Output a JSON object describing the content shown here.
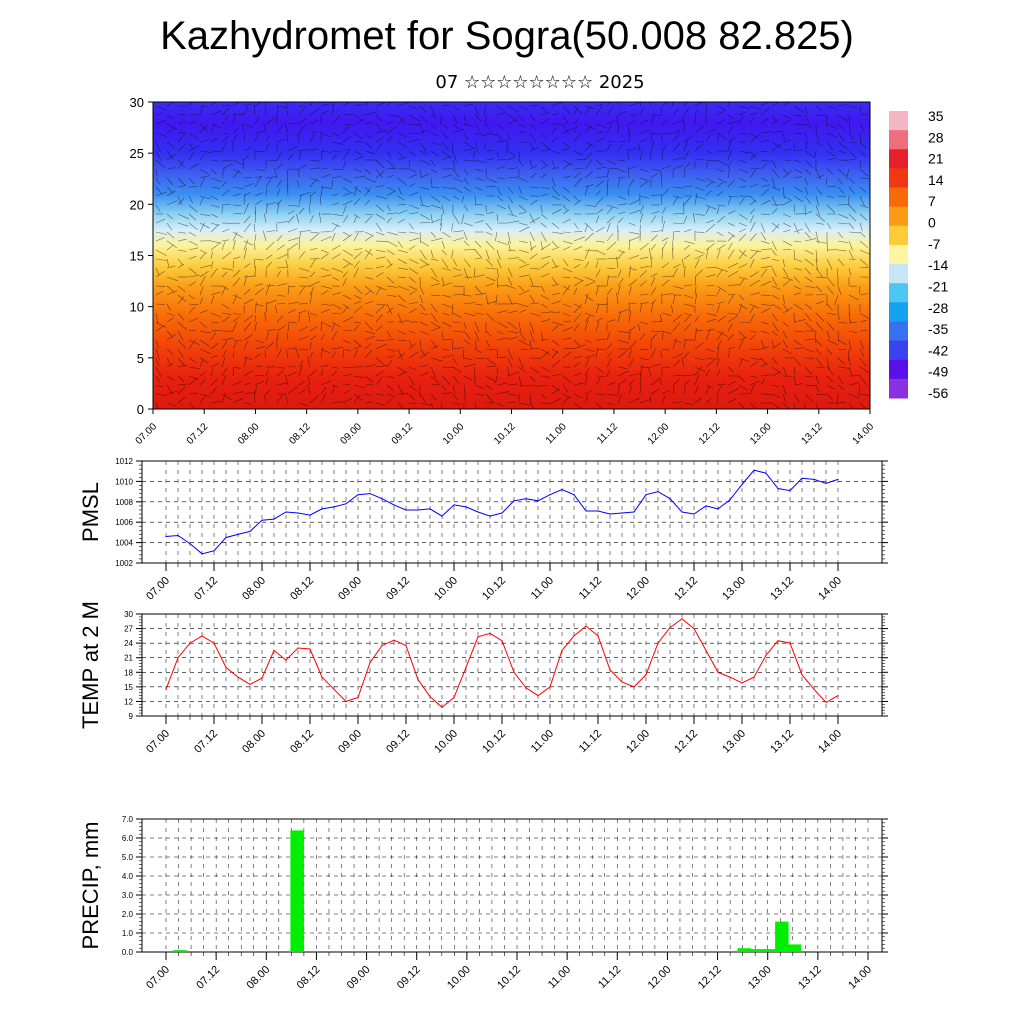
{
  "title": "Kazhydromet for Sogra(50.008 82.825)",
  "subtitle": "07 ☆☆☆☆☆☆☆☆ 2025",
  "chart_data": [
    {
      "type": "heatmap",
      "name": "vertical-section",
      "ylim": [
        0,
        30
      ],
      "yticks": [
        "0",
        "5",
        "10",
        "15",
        "20",
        "25",
        "30"
      ],
      "xticks": [
        "07.00",
        "07.12",
        "08.00",
        "08.12",
        "09.00",
        "09.12",
        "10.00",
        "10.12",
        "11.00",
        "11.12",
        "12.00",
        "12.12",
        "13.00",
        "13.12",
        "14.00"
      ],
      "colorbar_labels": [
        "35",
        "28",
        "21",
        "14",
        "7",
        "0",
        "-7",
        "-14",
        "-21",
        "-28",
        "-35",
        "-42",
        "-49",
        "-56"
      ],
      "colorbar_colors": [
        "#f4b6c2",
        "#ee6e7e",
        "#e8202a",
        "#f03812",
        "#f86a08",
        "#fb9a16",
        "#fccc38",
        "#fdf5a0",
        "#c6e6f5",
        "#4ec6f2",
        "#12a2f0",
        "#3770f0",
        "#3b42f0",
        "#5a10e8",
        "#8a30e0"
      ],
      "wind_vectors": true,
      "section_levels": [
        [
          0,
          "#dc1a10"
        ],
        [
          3,
          "#e82010"
        ],
        [
          6,
          "#f24208"
        ],
        [
          9,
          "#f86a08"
        ],
        [
          12,
          "#fb9e16"
        ],
        [
          14,
          "#fcce40"
        ],
        [
          16,
          "#fdf29a"
        ],
        [
          17.5,
          "#d8eef7"
        ],
        [
          19,
          "#8fd2f2"
        ],
        [
          21,
          "#3a8ef2"
        ],
        [
          23,
          "#3f5ef0"
        ],
        [
          25,
          "#3330f2"
        ],
        [
          28,
          "#4018f0"
        ],
        [
          30,
          "#3a2cf2"
        ]
      ]
    },
    {
      "type": "line",
      "name": "pmsl",
      "ylabel": "PMSL",
      "ylim": [
        1002,
        1012
      ],
      "yticks": [
        "1002",
        "1004",
        "1006",
        "1008",
        "1010",
        "1012"
      ],
      "xticks": [
        "07.00",
        "07.12",
        "08.00",
        "08.12",
        "09.00",
        "09.12",
        "10.00",
        "10.12",
        "11.00",
        "11.12",
        "12.00",
        "12.12",
        "13.00",
        "13.12",
        "14.00"
      ],
      "color": "#0000ff",
      "values": [
        1004.6,
        1004.7,
        1003.9,
        1002.9,
        1003.2,
        1004.5,
        1004.8,
        1005.1,
        1006.2,
        1006.3,
        1007.0,
        1006.9,
        1006.7,
        1007.3,
        1007.5,
        1007.8,
        1008.7,
        1008.8,
        1008.3,
        1007.7,
        1007.2,
        1007.2,
        1007.3,
        1006.6,
        1007.7,
        1007.5,
        1007.0,
        1006.6,
        1006.9,
        1008.1,
        1008.3,
        1008.1,
        1008.7,
        1009.2,
        1008.7,
        1007.1,
        1007.1,
        1006.8,
        1006.9,
        1007.0,
        1008.7,
        1009.0,
        1008.3,
        1007.0,
        1006.8,
        1007.6,
        1007.3,
        1008.2,
        1009.7,
        1011.1,
        1010.8,
        1009.3,
        1009.1,
        1010.3,
        1010.2,
        1009.8,
        1010.2
      ]
    },
    {
      "type": "line",
      "name": "temp",
      "ylabel": "TEMP at 2 M",
      "ylim": [
        9,
        30
      ],
      "yticks": [
        "9",
        "12",
        "15",
        "18",
        "21",
        "24",
        "27",
        "30"
      ],
      "xticks": [
        "07.00",
        "07.12",
        "08.00",
        "08.12",
        "09.00",
        "09.12",
        "10.00",
        "10.12",
        "11.00",
        "11.12",
        "12.00",
        "12.12",
        "13.00",
        "13.12",
        "14.00"
      ],
      "color": "#ff0000",
      "values": [
        14.5,
        21.0,
        24.0,
        25.5,
        24.0,
        19.0,
        17.0,
        15.5,
        16.8,
        22.5,
        20.5,
        23.0,
        22.8,
        17.0,
        14.5,
        12.0,
        12.8,
        20.0,
        23.5,
        24.6,
        23.5,
        16.5,
        13.0,
        10.8,
        12.8,
        19.0,
        25.3,
        26.0,
        24.5,
        18.0,
        14.8,
        13.2,
        15.0,
        22.5,
        25.5,
        27.5,
        25.5,
        18.5,
        16.0,
        15.0,
        17.5,
        24.0,
        27.2,
        29.0,
        27.0,
        22.5,
        18.0,
        17.0,
        15.8,
        17.0,
        21.5,
        24.5,
        24.0,
        17.5,
        14.5,
        11.8,
        13.2
      ]
    },
    {
      "type": "bar",
      "name": "precip",
      "ylabel": "PRECIP, mm",
      "ylim": [
        0,
        7
      ],
      "yticks": [
        "0.0",
        "1.0",
        "2.0",
        "3.0",
        "4.0",
        "5.0",
        "6.0",
        "7.0"
      ],
      "xticks": [
        "07.00",
        "07.12",
        "08.00",
        "08.12",
        "09.00",
        "09.12",
        "10.00",
        "10.12",
        "11.00",
        "11.12",
        "12.00",
        "12.12",
        "13.00",
        "13.12",
        "14.00"
      ],
      "color": "#00ee00",
      "bars": [
        {
          "x": 2,
          "value": 0.1
        },
        {
          "x": 30,
          "value": 6.4
        },
        {
          "x": 137,
          "value": 0.2
        },
        {
          "x": 140,
          "value": 0.15
        },
        {
          "x": 143,
          "value": 0.15
        },
        {
          "x": 146,
          "value": 1.6
        },
        {
          "x": 149,
          "value": 0.4
        }
      ]
    }
  ]
}
